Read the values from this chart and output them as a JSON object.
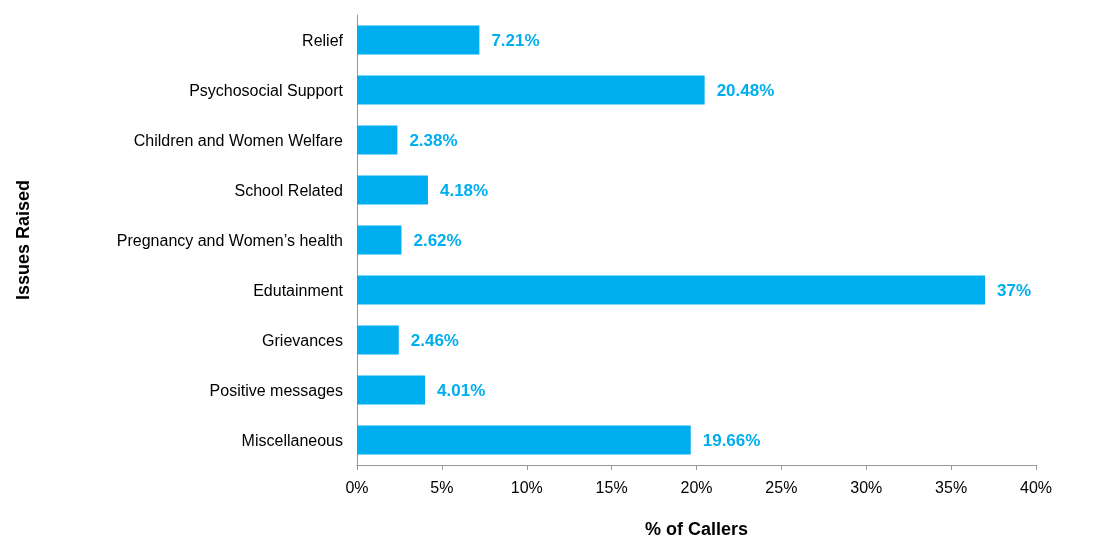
{
  "chart_data": {
    "type": "bar",
    "orientation": "horizontal",
    "xlabel": "% of Callers",
    "ylabel": "Issues Raised",
    "categories": [
      "Relief",
      "Psychosocial Support",
      "Children and Women Welfare",
      "School Related",
      "Pregnancy and Women’s health",
      "Edutainment",
      "Grievances",
      "Positive messages",
      "Miscellaneous"
    ],
    "values": [
      7.21,
      20.48,
      2.38,
      4.18,
      2.62,
      37,
      2.46,
      4.01,
      19.66
    ],
    "value_labels": [
      "7.21%",
      "20.48%",
      "2.38%",
      "4.18%",
      "2.62%",
      "37%",
      "2.46%",
      "4.01%",
      "19.66%"
    ],
    "color": "#00aeef",
    "xlim": [
      0,
      40
    ],
    "xticks": [
      {
        "value": 0,
        "label": "0%"
      },
      {
        "value": 5,
        "label": "5%"
      },
      {
        "value": 10,
        "label": "10%"
      },
      {
        "value": 15,
        "label": "15%"
      },
      {
        "value": 20,
        "label": "20%"
      },
      {
        "value": 25,
        "label": "25%"
      },
      {
        "value": 30,
        "label": "30%"
      },
      {
        "value": 35,
        "label": "35%"
      },
      {
        "value": 40,
        "label": "40%"
      }
    ],
    "grid": false
  }
}
